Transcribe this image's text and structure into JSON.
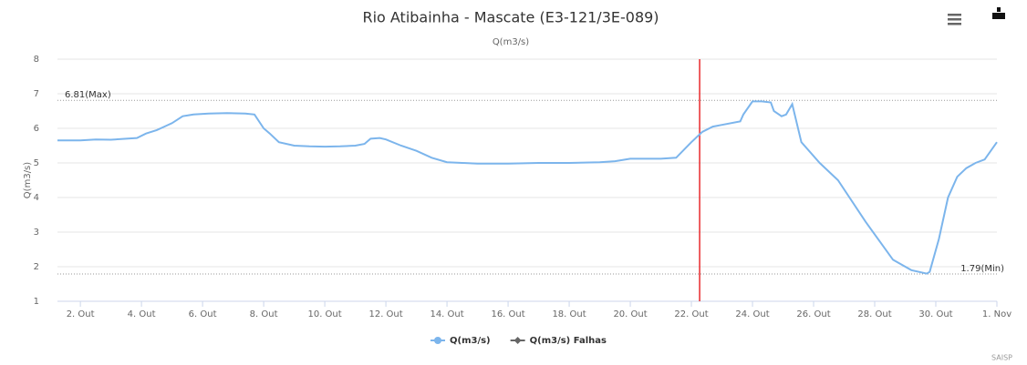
{
  "chart_data": {
    "type": "line",
    "title": "Rio Atibainha - Mascate (E3-121/3E-089)",
    "subtitle": "Q(m3/s)",
    "y_label": "Q(m3/s)",
    "credits": "SAISP",
    "x": [
      1.25,
      2,
      2.5,
      3,
      3.5,
      3.85,
      4.15,
      4.5,
      4.75,
      5,
      5.35,
      5.7,
      6.2,
      6.8,
      7.4,
      7.7,
      8,
      8.2,
      8.5,
      9,
      9.5,
      10,
      10.5,
      11,
      11.3,
      11.5,
      11.8,
      12,
      12.5,
      13,
      13.5,
      14,
      14.5,
      15,
      16,
      17,
      18,
      19,
      19.5,
      20,
      21,
      21.5,
      22,
      22.36,
      22.7,
      23,
      23.6,
      23.7,
      24,
      24.3,
      24.6,
      24.7,
      24.95,
      25.1,
      25.3,
      25.6,
      26.2,
      26.8,
      27.7,
      28.6,
      29.2,
      29.7,
      29.8,
      30.1,
      30.4,
      30.7,
      31,
      31.3,
      31.6,
      32
    ],
    "series": [
      {
        "name": "Q(m3/s)",
        "color": "#7cb5ec",
        "marker": "circle",
        "values": [
          5.65,
          5.65,
          5.68,
          5.67,
          5.7,
          5.72,
          5.85,
          5.95,
          6.05,
          6.15,
          6.35,
          6.4,
          6.43,
          6.44,
          6.43,
          6.4,
          6.0,
          5.85,
          5.6,
          5.5,
          5.48,
          5.47,
          5.48,
          5.5,
          5.55,
          5.7,
          5.72,
          5.68,
          5.5,
          5.35,
          5.15,
          5.02,
          5.0,
          4.98,
          4.98,
          5.0,
          5.0,
          5.02,
          5.05,
          5.12,
          5.12,
          5.15,
          5.6,
          5.9,
          6.05,
          6.1,
          6.2,
          6.4,
          6.78,
          6.78,
          6.75,
          6.5,
          6.35,
          6.4,
          6.7,
          5.6,
          5.0,
          4.5,
          3.3,
          2.2,
          1.9,
          1.8,
          1.85,
          2.8,
          4.0,
          4.6,
          4.85,
          5.0,
          5.1,
          5.6
        ]
      },
      {
        "name": "Q(m3/s) Falhas",
        "color": "#666666",
        "marker": "diamond",
        "values": [
          null,
          null,
          null,
          null,
          null,
          null,
          null,
          null,
          null,
          null,
          null,
          null,
          null,
          null,
          null,
          null,
          null,
          null,
          null,
          null,
          null,
          null,
          null,
          null,
          null,
          null,
          null,
          null,
          null,
          null,
          null,
          null,
          null,
          null,
          null,
          null,
          null,
          null,
          null,
          null,
          null,
          null,
          null,
          null,
          null,
          null,
          null,
          null,
          null,
          null,
          null,
          null,
          null,
          null,
          null,
          null,
          null,
          null,
          null,
          null,
          null,
          null,
          null,
          null,
          null,
          null,
          null,
          null,
          null,
          null
        ]
      }
    ],
    "xlim": [
      1.25,
      32
    ],
    "xticks": [
      {
        "value": 2,
        "label": "2. Out"
      },
      {
        "value": 4,
        "label": "4. Out"
      },
      {
        "value": 6,
        "label": "6. Out"
      },
      {
        "value": 8,
        "label": "8. Out"
      },
      {
        "value": 10,
        "label": "10. Out"
      },
      {
        "value": 12,
        "label": "12. Out"
      },
      {
        "value": 14,
        "label": "14. Out"
      },
      {
        "value": 16,
        "label": "16. Out"
      },
      {
        "value": 18,
        "label": "18. Out"
      },
      {
        "value": 20,
        "label": "20. Out"
      },
      {
        "value": 22,
        "label": "22. Out"
      },
      {
        "value": 24,
        "label": "24. Out"
      },
      {
        "value": 26,
        "label": "26. Out"
      },
      {
        "value": 28,
        "label": "28. Out"
      },
      {
        "value": 30,
        "label": "30. Out"
      },
      {
        "value": 32,
        "label": "1. Nov"
      }
    ],
    "ylim": [
      1,
      8
    ],
    "yticks": [
      1,
      2,
      3,
      4,
      5,
      6,
      7,
      8
    ],
    "grid": true,
    "reference_lines": [
      {
        "value": 6.81,
        "label": "6.81(Max)",
        "anchor": "left"
      },
      {
        "value": 1.79,
        "label": "1.79(Min)",
        "anchor": "right"
      }
    ],
    "vertical_lines": [
      {
        "value": 22.27,
        "color": "#e8282b"
      }
    ]
  }
}
